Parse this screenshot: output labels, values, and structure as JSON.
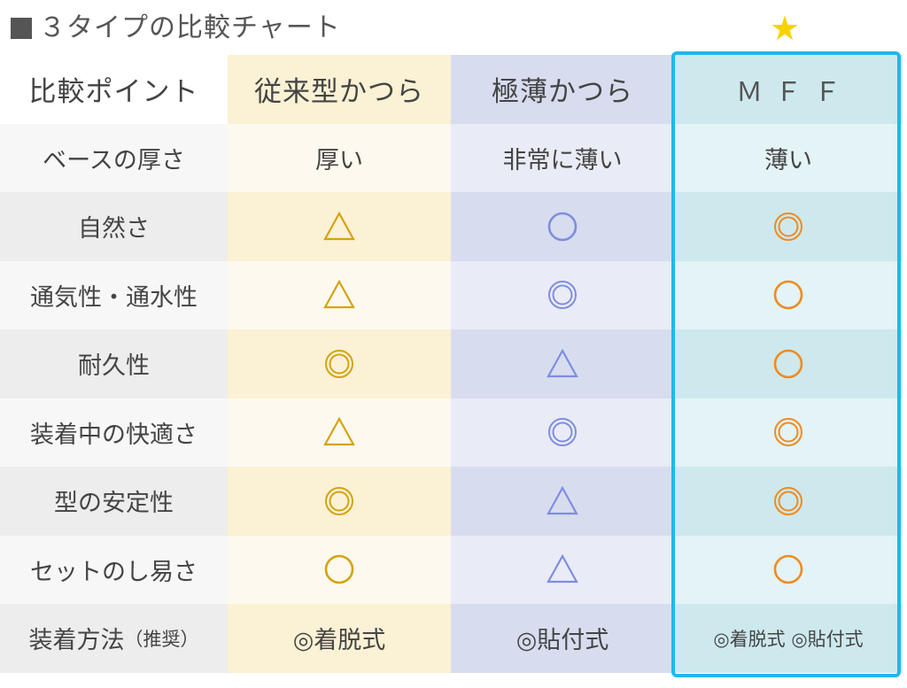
{
  "title": "３タイプの比較チャート",
  "star": "★",
  "colors": {
    "conventional": "#d4a30f",
    "ultrathin": "#7f8ddf",
    "mff": "#f08a20",
    "highlight_border": "#1fb8ec",
    "star": "#f7d200"
  },
  "header": {
    "label": "比較ポイント",
    "col1": "従来型かつら",
    "col2": "極薄かつら",
    "col3": "ＭＦＦ"
  },
  "base_row": {
    "label": "ベースの厚さ",
    "col1": "厚い",
    "col2": "非常に薄い",
    "col3": "薄い"
  },
  "symbol_rows": [
    {
      "label": "自然さ",
      "col1": "△",
      "col2": "○",
      "col3": "◎"
    },
    {
      "label": "通気性・通水性",
      "col1": "△",
      "col2": "◎",
      "col3": "○"
    },
    {
      "label": "耐久性",
      "col1": "◎",
      "col2": "△",
      "col3": "○"
    },
    {
      "label": "装着中の快適さ",
      "col1": "△",
      "col2": "◎",
      "col3": "◎"
    },
    {
      "label": "型の安定性",
      "col1": "◎",
      "col2": "△",
      "col3": "◎"
    },
    {
      "label": "セットのし易さ",
      "col1": "○",
      "col2": "△",
      "col3": "○"
    }
  ],
  "method_row": {
    "label": "装着方法",
    "label_note": "（推奨）",
    "col1": "◎着脱式",
    "col2": "◎貼付式",
    "col3": "◎着脱式 ◎貼付式"
  }
}
